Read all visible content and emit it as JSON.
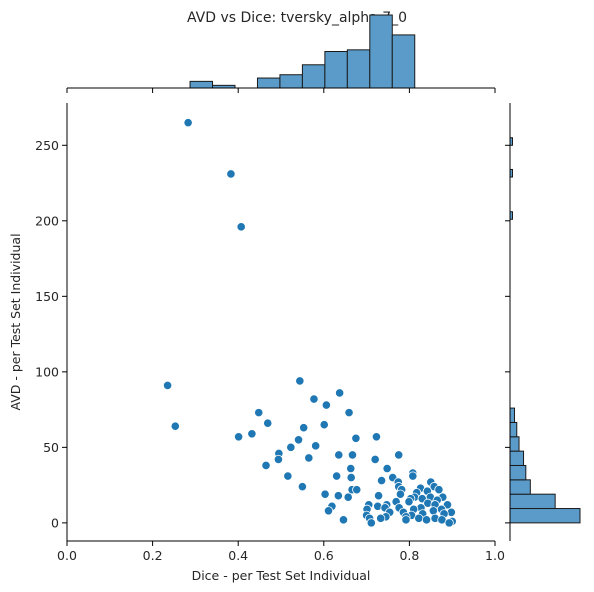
{
  "chart_data": {
    "type": "scatter",
    "title": "AVD vs Dice: tversky_alpha.7_0",
    "xlabel": "Dice - per Test Set Individual",
    "ylabel": "AVD - per Test Set Individual",
    "xlim": [
      0.0,
      1.0
    ],
    "ylim": [
      -12,
      278
    ],
    "x_ticks": [
      0.0,
      0.2,
      0.4,
      0.6,
      0.8,
      1.0
    ],
    "x_tick_labels": [
      "0.0",
      "0.2",
      "0.4",
      "0.6",
      "0.8",
      "1.0"
    ],
    "y_ticks": [
      0,
      50,
      100,
      150,
      200,
      250
    ],
    "y_tick_labels": [
      "0",
      "50",
      "100",
      "150",
      "200",
      "250"
    ],
    "grid": false,
    "marker_color": "#1f77b4",
    "hist_fill": "#5a9bc9",
    "points": [
      [
        0.283,
        265
      ],
      [
        0.383,
        231
      ],
      [
        0.407,
        196
      ],
      [
        0.235,
        91
      ],
      [
        0.253,
        64
      ],
      [
        0.544,
        94
      ],
      [
        0.637,
        86
      ],
      [
        0.577,
        82
      ],
      [
        0.606,
        78
      ],
      [
        0.448,
        73
      ],
      [
        0.659,
        73
      ],
      [
        0.553,
        63
      ],
      [
        0.601,
        65
      ],
      [
        0.469,
        66
      ],
      [
        0.401,
        57
      ],
      [
        0.432,
        59
      ],
      [
        0.723,
        57
      ],
      [
        0.541,
        55
      ],
      [
        0.675,
        56
      ],
      [
        0.523,
        50
      ],
      [
        0.581,
        51
      ],
      [
        0.495,
        46
      ],
      [
        0.635,
        45
      ],
      [
        0.494,
        42
      ],
      [
        0.565,
        43
      ],
      [
        0.72,
        42
      ],
      [
        0.667,
        45
      ],
      [
        0.775,
        45
      ],
      [
        0.465,
        38
      ],
      [
        0.663,
        36
      ],
      [
        0.748,
        36
      ],
      [
        0.808,
        33
      ],
      [
        0.516,
        31
      ],
      [
        0.63,
        31
      ],
      [
        0.808,
        31
      ],
      [
        0.664,
        30
      ],
      [
        0.761,
        30
      ],
      [
        0.735,
        28
      ],
      [
        0.774,
        27
      ],
      [
        0.85,
        27
      ],
      [
        0.775,
        24
      ],
      [
        0.826,
        23
      ],
      [
        0.858,
        24
      ],
      [
        0.55,
        24
      ],
      [
        0.666,
        22
      ],
      [
        0.677,
        22
      ],
      [
        0.782,
        22
      ],
      [
        0.869,
        22
      ],
      [
        0.817,
        20
      ],
      [
        0.842,
        21
      ],
      [
        0.779,
        19
      ],
      [
        0.603,
        19
      ],
      [
        0.634,
        18
      ],
      [
        0.728,
        18
      ],
      [
        0.812,
        17
      ],
      [
        0.849,
        17
      ],
      [
        0.878,
        17
      ],
      [
        0.657,
        17
      ],
      [
        0.803,
        16
      ],
      [
        0.83,
        16
      ],
      [
        0.865,
        15
      ],
      [
        0.769,
        14
      ],
      [
        0.799,
        14
      ],
      [
        0.843,
        13
      ],
      [
        0.747,
        12
      ],
      [
        0.86,
        12
      ],
      [
        0.889,
        12
      ],
      [
        0.705,
        12
      ],
      [
        0.726,
        11
      ],
      [
        0.619,
        11
      ],
      [
        0.743,
        10
      ],
      [
        0.776,
        10
      ],
      [
        0.827,
        10
      ],
      [
        0.875,
        9
      ],
      [
        0.81,
        9
      ],
      [
        0.701,
        9
      ],
      [
        0.856,
        8
      ],
      [
        0.611,
        8
      ],
      [
        0.754,
        7
      ],
      [
        0.786,
        7
      ],
      [
        0.898,
        7
      ],
      [
        0.881,
        6
      ],
      [
        0.831,
        6
      ],
      [
        0.7,
        5
      ],
      [
        0.805,
        5
      ],
      [
        0.745,
        4
      ],
      [
        0.792,
        4
      ],
      [
        0.86,
        3
      ],
      [
        0.822,
        3
      ],
      [
        0.707,
        3
      ],
      [
        0.733,
        3
      ],
      [
        0.646,
        2
      ],
      [
        0.84,
        2
      ],
      [
        0.876,
        2
      ],
      [
        0.792,
        2
      ],
      [
        0.9,
        1
      ],
      [
        0.711,
        0
      ],
      [
        0.893,
        0
      ]
    ],
    "top_histogram": {
      "bin_edges": [
        0.235,
        0.2875,
        0.34,
        0.3925,
        0.445,
        0.4975,
        0.55,
        0.6025,
        0.655,
        0.7075,
        0.76,
        0.8125,
        0.865,
        0.9175
      ],
      "counts": [
        0,
        2,
        0.8,
        0,
        3,
        4,
        7,
        11,
        11.5,
        22,
        16,
        0,
        0
      ]
    },
    "right_histogram": {
      "bin_edges": [
        0,
        9.5,
        19,
        28.5,
        38,
        47.5,
        57,
        66.5,
        76,
        85.5,
        95,
        104.5,
        114
      ],
      "counts": [
        31,
        20,
        9,
        7,
        6,
        4,
        3,
        2,
        0,
        0,
        0,
        0
      ]
    }
  }
}
